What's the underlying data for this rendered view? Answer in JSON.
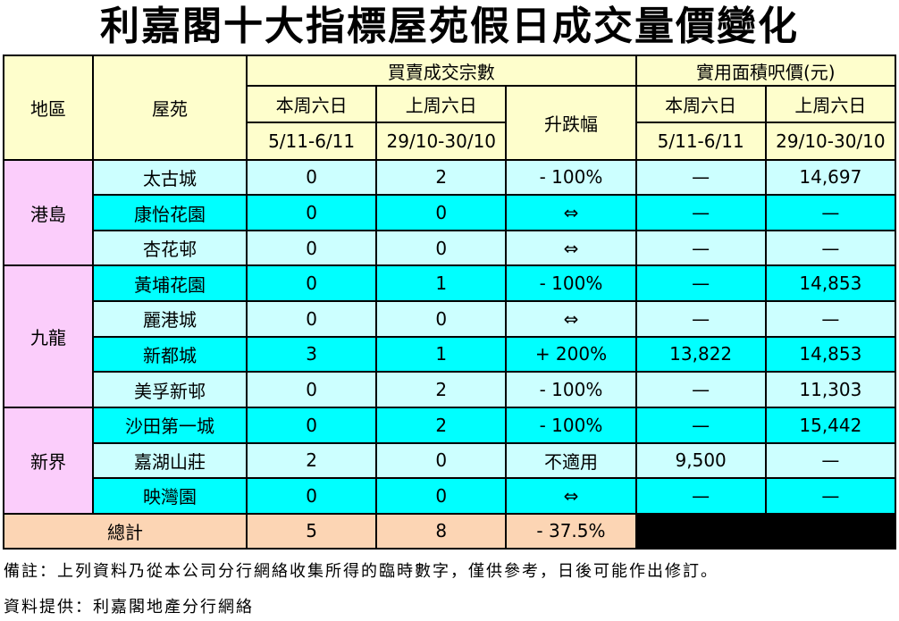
{
  "title": "利嘉閣十大指標屋苑假日成交量價變化",
  "headers": {
    "region": "地區",
    "estate": "屋苑",
    "volume_group": "買賣成交宗數",
    "price_group": "實用面積呎價(元)",
    "this_sat": "本周六日",
    "this_dates": "5/11-6/11",
    "last_sat": "上周六日",
    "last_dates": "29/10-30/10",
    "change": "升跌幅"
  },
  "regions": [
    {
      "name": "港島"
    },
    {
      "name": "九龍"
    },
    {
      "name": "新界"
    }
  ],
  "rows": [
    {
      "estate": "太古城",
      "this_vol": "0",
      "last_vol": "2",
      "change": "- 100%",
      "this_price": "—",
      "last_price": "14,697"
    },
    {
      "estate": "康怡花園",
      "this_vol": "0",
      "last_vol": "0",
      "change": "⇔",
      "this_price": "—",
      "last_price": "—"
    },
    {
      "estate": "杏花邨",
      "this_vol": "0",
      "last_vol": "0",
      "change": "⇔",
      "this_price": "—",
      "last_price": "—"
    },
    {
      "estate": "黃埔花園",
      "this_vol": "0",
      "last_vol": "1",
      "change": "- 100%",
      "this_price": "—",
      "last_price": "14,853"
    },
    {
      "estate": "麗港城",
      "this_vol": "0",
      "last_vol": "0",
      "change": "⇔",
      "this_price": "—",
      "last_price": "—"
    },
    {
      "estate": "新都城",
      "this_vol": "3",
      "last_vol": "1",
      "change": "+ 200%",
      "this_price": "13,822",
      "last_price": "14,853"
    },
    {
      "estate": "美孚新邨",
      "this_vol": "0",
      "last_vol": "2",
      "change": "- 100%",
      "this_price": "—",
      "last_price": "11,303"
    },
    {
      "estate": "沙田第一城",
      "this_vol": "0",
      "last_vol": "2",
      "change": "- 100%",
      "this_price": "—",
      "last_price": "15,442"
    },
    {
      "estate": "嘉湖山莊",
      "this_vol": "2",
      "last_vol": "0",
      "change": "不適用",
      "this_price": "9,500",
      "last_price": "—"
    },
    {
      "estate": "映灣園",
      "this_vol": "0",
      "last_vol": "0",
      "change": "⇔",
      "this_price": "—",
      "last_price": "—"
    }
  ],
  "total": {
    "label": "總計",
    "this_vol": "5",
    "last_vol": "8",
    "change": "- 37.5%"
  },
  "notes": {
    "remark": "備註：上列資料乃從本公司分行網絡收集所得的臨時數字，僅供參考，日後可能作出修訂。",
    "source": "資料提供：利嘉閣地產分行網絡"
  }
}
